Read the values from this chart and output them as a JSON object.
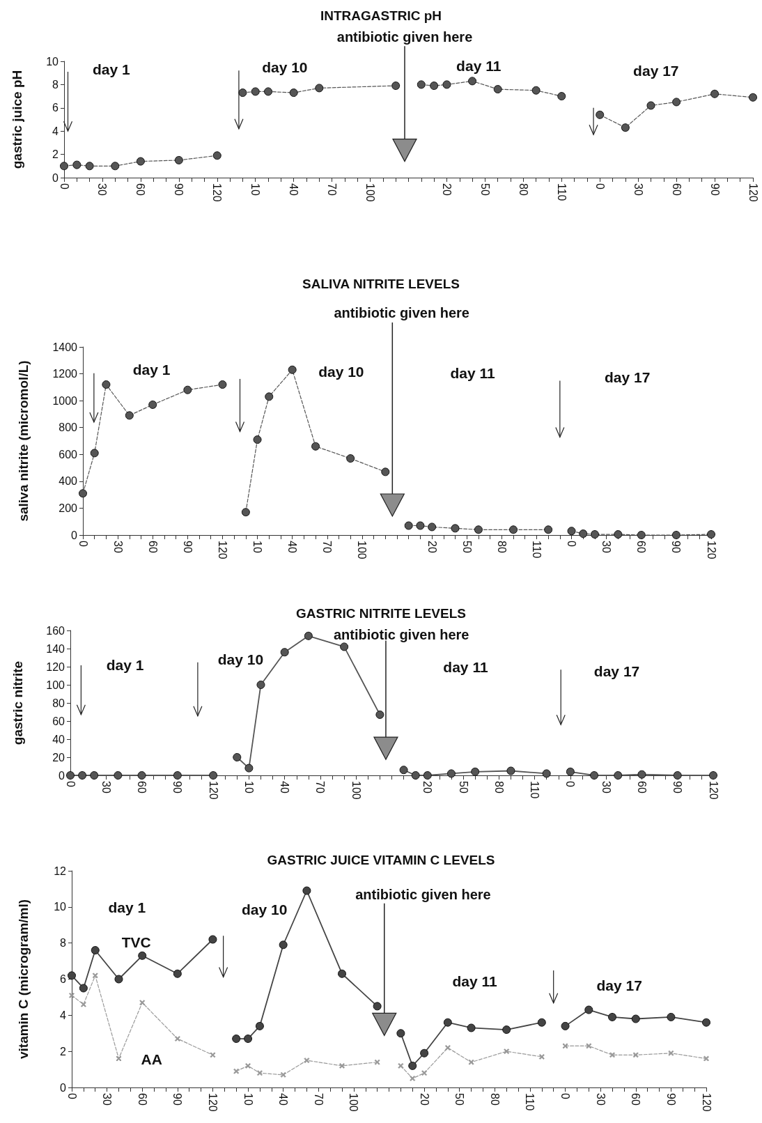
{
  "chart_data": [
    {
      "type": "line",
      "title": "INTRAGASTRIC pH",
      "ylabel": "gastric juice pH",
      "marker": "circle",
      "line_style": "dashed",
      "annotations": [
        "antibiotic given here",
        "day 1",
        "day 10",
        "day 11",
        "day 17"
      ],
      "categories": [
        "0",
        null,
        null,
        "30",
        null,
        null,
        "60",
        null,
        null,
        "90",
        null,
        null,
        "120",
        null,
        null,
        "10",
        null,
        null,
        "40",
        null,
        null,
        "70",
        null,
        null,
        "100",
        null,
        null,
        null,
        null,
        null,
        "20",
        null,
        null,
        "50",
        null,
        null,
        "80",
        null,
        null,
        "110",
        null,
        null,
        "0",
        null,
        null,
        "30",
        null,
        null,
        "60",
        null,
        null,
        "90",
        null,
        null,
        "120"
      ],
      "ylim": [
        0,
        10
      ],
      "yticks": [
        0,
        2,
        4,
        6,
        8,
        10
      ],
      "series": [
        {
          "color": "#555555",
          "values": [
            1.0,
            1.1,
            1.0,
            null,
            1.0,
            null,
            1.4,
            null,
            null,
            1.5,
            null,
            null,
            1.9,
            null,
            null,
            null,
            null,
            null,
            null,
            null,
            null,
            null,
            null,
            null,
            null,
            null,
            null,
            null,
            null,
            null,
            null,
            null,
            null,
            null,
            null,
            null,
            null,
            null,
            null,
            null,
            null,
            null,
            null,
            null,
            null,
            null,
            null,
            null,
            null,
            null,
            null,
            null,
            null,
            null,
            null
          ]
        },
        {
          "color": "#555555",
          "values": [
            null,
            null,
            null,
            null,
            null,
            null,
            null,
            null,
            null,
            null,
            null,
            null,
            null,
            null,
            7.3,
            7.4,
            7.4,
            null,
            7.3,
            null,
            7.7,
            null,
            null,
            null,
            null,
            null,
            7.9,
            null,
            null,
            null,
            null,
            null,
            null,
            null,
            null,
            null,
            null,
            null,
            null,
            null,
            null,
            null,
            null,
            null,
            null,
            null,
            null,
            null,
            null,
            null,
            null,
            null,
            null,
            null,
            null
          ]
        },
        {
          "color": "#555555",
          "values": [
            null,
            null,
            null,
            null,
            null,
            null,
            null,
            null,
            null,
            null,
            null,
            null,
            null,
            null,
            null,
            null,
            null,
            null,
            null,
            null,
            null,
            null,
            null,
            null,
            null,
            null,
            null,
            null,
            8.0,
            7.9,
            8.0,
            null,
            8.3,
            null,
            7.6,
            null,
            null,
            7.5,
            null,
            7.0,
            null,
            null,
            null,
            null,
            null,
            null,
            null,
            null,
            null,
            null,
            null,
            null,
            null,
            null,
            null
          ]
        },
        {
          "color": "#555555",
          "values": [
            null,
            null,
            null,
            null,
            null,
            null,
            null,
            null,
            null,
            null,
            null,
            null,
            null,
            null,
            null,
            null,
            null,
            null,
            null,
            null,
            null,
            null,
            null,
            null,
            null,
            null,
            null,
            null,
            null,
            null,
            null,
            null,
            null,
            null,
            null,
            null,
            null,
            null,
            null,
            null,
            null,
            null,
            5.4,
            null,
            4.3,
            null,
            6.2,
            null,
            6.5,
            null,
            null,
            7.2,
            null,
            null,
            6.9
          ]
        }
      ]
    },
    {
      "type": "line",
      "title": "SALIVA NITRITE LEVELS",
      "ylabel": "saliva nitrite (micromol/L)",
      "marker": "circle",
      "line_style": "dashed",
      "annotations": [
        "antibiotic given here",
        "day 1",
        "day 10",
        "day 11",
        "day 17"
      ],
      "categories": [
        "0",
        null,
        null,
        "30",
        null,
        null,
        "60",
        null,
        null,
        "90",
        null,
        null,
        "120",
        null,
        null,
        "10",
        null,
        null,
        "40",
        null,
        null,
        "70",
        null,
        null,
        "100",
        null,
        null,
        null,
        null,
        null,
        "20",
        null,
        null,
        "50",
        null,
        null,
        "80",
        null,
        null,
        "110",
        null,
        null,
        "0",
        null,
        null,
        "30",
        null,
        null,
        "60",
        null,
        null,
        "90",
        null,
        null,
        "120"
      ],
      "ylim": [
        0,
        1400
      ],
      "yticks": [
        0,
        200,
        400,
        600,
        800,
        1000,
        1200,
        1400
      ],
      "series": [
        {
          "color": "#555555",
          "values": [
            310,
            610,
            1120,
            null,
            890,
            null,
            970,
            null,
            null,
            1080,
            null,
            null,
            1120,
            null,
            null,
            null,
            null,
            null,
            null,
            null,
            null,
            null,
            null,
            null,
            null,
            null,
            null,
            null,
            null,
            null,
            null,
            null,
            null,
            null,
            null,
            null,
            null,
            null,
            null,
            null,
            null,
            null,
            null,
            null,
            null,
            null,
            null,
            null,
            null,
            null,
            null,
            null,
            null,
            null,
            null
          ]
        },
        {
          "color": "#555555",
          "values": [
            null,
            null,
            null,
            null,
            null,
            null,
            null,
            null,
            null,
            null,
            null,
            null,
            null,
            null,
            170,
            710,
            1030,
            null,
            1230,
            null,
            660,
            null,
            null,
            570,
            null,
            null,
            470,
            null,
            null,
            null,
            null,
            null,
            null,
            null,
            null,
            null,
            null,
            null,
            null,
            null,
            null,
            null,
            null,
            null,
            null,
            null,
            null,
            null,
            null,
            null,
            null,
            null,
            null,
            null,
            null
          ]
        },
        {
          "color": "#555555",
          "values": [
            null,
            null,
            null,
            null,
            null,
            null,
            null,
            null,
            null,
            null,
            null,
            null,
            null,
            null,
            null,
            null,
            null,
            null,
            null,
            null,
            null,
            null,
            null,
            null,
            null,
            null,
            null,
            null,
            70,
            70,
            60,
            null,
            50,
            null,
            40,
            null,
            null,
            40,
            null,
            null,
            40,
            null,
            null,
            null,
            null,
            null,
            null,
            null,
            null,
            null,
            null,
            null,
            null,
            null,
            null
          ]
        },
        {
          "color": "#555555",
          "values": [
            null,
            null,
            null,
            null,
            null,
            null,
            null,
            null,
            null,
            null,
            null,
            null,
            null,
            null,
            null,
            null,
            null,
            null,
            null,
            null,
            null,
            null,
            null,
            null,
            null,
            null,
            null,
            null,
            null,
            null,
            null,
            null,
            null,
            null,
            null,
            null,
            null,
            null,
            null,
            null,
            null,
            null,
            30,
            10,
            5,
            null,
            5,
            null,
            0,
            null,
            null,
            0,
            null,
            null,
            5
          ]
        }
      ]
    },
    {
      "type": "line",
      "title": "GASTRIC NITRITE LEVELS",
      "ylabel": "gastric nitrite",
      "marker": "circle",
      "line_style": "solid",
      "annotations": [
        "antibiotic given here",
        "day 1",
        "day 10",
        "day 11",
        "day 17"
      ],
      "categories": [
        "0",
        null,
        null,
        "30",
        null,
        null,
        "60",
        null,
        null,
        "90",
        null,
        null,
        "120",
        null,
        null,
        "10",
        null,
        null,
        "40",
        null,
        null,
        "70",
        null,
        null,
        "100",
        null,
        null,
        null,
        null,
        null,
        "20",
        null,
        null,
        "50",
        null,
        null,
        "80",
        null,
        null,
        "110",
        null,
        null,
        "0",
        null,
        null,
        "30",
        null,
        null,
        "60",
        null,
        null,
        "90",
        null,
        null,
        "120"
      ],
      "ylim": [
        0,
        160
      ],
      "yticks": [
        0,
        20,
        40,
        60,
        80,
        100,
        120,
        140,
        160
      ],
      "series": [
        {
          "color": "#555555",
          "values": [
            0,
            0,
            0,
            null,
            0,
            null,
            0,
            null,
            null,
            0,
            null,
            null,
            0,
            null,
            null,
            null,
            null,
            null,
            null,
            null,
            null,
            null,
            null,
            null,
            null,
            null,
            null,
            null,
            null,
            null,
            null,
            null,
            null,
            null,
            null,
            null,
            null,
            null,
            null,
            null,
            null,
            null,
            null,
            null,
            null,
            null,
            null,
            null,
            null,
            null,
            null,
            null,
            null,
            null,
            null
          ]
        },
        {
          "color": "#555555",
          "values": [
            null,
            null,
            null,
            null,
            null,
            null,
            null,
            null,
            null,
            null,
            null,
            null,
            null,
            null,
            20,
            8,
            100,
            null,
            136,
            null,
            154,
            null,
            null,
            142,
            null,
            null,
            67,
            null,
            null,
            null,
            null,
            null,
            null,
            null,
            null,
            null,
            null,
            null,
            null,
            null,
            null,
            null,
            null,
            null,
            null,
            null,
            null,
            null,
            null,
            null,
            null,
            null,
            null,
            null,
            null
          ]
        },
        {
          "color": "#555555",
          "values": [
            null,
            null,
            null,
            null,
            null,
            null,
            null,
            null,
            null,
            null,
            null,
            null,
            null,
            null,
            null,
            null,
            null,
            null,
            null,
            null,
            null,
            null,
            null,
            null,
            null,
            null,
            null,
            null,
            6,
            0,
            0,
            null,
            2,
            null,
            4,
            null,
            null,
            5,
            null,
            null,
            2,
            null,
            null,
            null,
            null,
            null,
            null,
            null,
            null,
            null,
            null,
            null,
            null,
            null,
            null
          ]
        },
        {
          "color": "#555555",
          "values": [
            null,
            null,
            null,
            null,
            null,
            null,
            null,
            null,
            null,
            null,
            null,
            null,
            null,
            null,
            null,
            null,
            null,
            null,
            null,
            null,
            null,
            null,
            null,
            null,
            null,
            null,
            null,
            null,
            null,
            null,
            null,
            null,
            null,
            null,
            null,
            null,
            null,
            null,
            null,
            null,
            null,
            null,
            4,
            null,
            0,
            null,
            0,
            null,
            1,
            null,
            null,
            0,
            null,
            null,
            0
          ]
        }
      ]
    },
    {
      "type": "line",
      "title": "GASTRIC JUICE VITAMIN C LEVELS",
      "ylabel": "vitamin C (microgram/ml)",
      "marker": "circle",
      "line_style": "solid",
      "annotations": [
        "antibiotic given here",
        "day 1",
        "day 10",
        "day 11",
        "day 17"
      ],
      "categories": [
        "0",
        null,
        null,
        "30",
        null,
        null,
        "60",
        null,
        null,
        "90",
        null,
        null,
        "120",
        null,
        null,
        "10",
        null,
        null,
        "40",
        null,
        null,
        "70",
        null,
        null,
        "100",
        null,
        null,
        null,
        null,
        null,
        "20",
        null,
        null,
        "50",
        null,
        null,
        "80",
        null,
        null,
        "110",
        null,
        null,
        "0",
        null,
        null,
        "30",
        null,
        null,
        "60",
        null,
        null,
        "90",
        null,
        null,
        "120"
      ],
      "ylim": [
        0,
        12
      ],
      "yticks": [
        0,
        2,
        4,
        6,
        8,
        10,
        12
      ],
      "series": [
        {
          "name": "TVC",
          "color": "#444444",
          "values": [
            6.2,
            5.5,
            7.6,
            null,
            6.0,
            null,
            7.3,
            null,
            null,
            6.3,
            null,
            null,
            8.2,
            null,
            null,
            null,
            null,
            null,
            null,
            null,
            null,
            null,
            null,
            null,
            null,
            null,
            null,
            null,
            null,
            null,
            null,
            null,
            null,
            null,
            null,
            null,
            null,
            null,
            null,
            null,
            null,
            null,
            null,
            null,
            null,
            null,
            null,
            null,
            null,
            null,
            null,
            null,
            null,
            null,
            null
          ]
        },
        {
          "color": "#444444",
          "values": [
            null,
            null,
            null,
            null,
            null,
            null,
            null,
            null,
            null,
            null,
            null,
            null,
            null,
            null,
            2.7,
            2.7,
            3.4,
            null,
            7.9,
            null,
            10.9,
            null,
            null,
            6.3,
            null,
            null,
            4.5,
            null,
            null,
            null,
            null,
            null,
            null,
            null,
            null,
            null,
            null,
            null,
            null,
            null,
            null,
            null,
            null,
            null,
            null,
            null,
            null,
            null,
            null,
            null,
            null,
            null,
            null,
            null,
            null
          ]
        },
        {
          "color": "#444444",
          "values": [
            null,
            null,
            null,
            null,
            null,
            null,
            null,
            null,
            null,
            null,
            null,
            null,
            null,
            null,
            null,
            null,
            null,
            null,
            null,
            null,
            null,
            null,
            null,
            null,
            null,
            null,
            null,
            null,
            3.0,
            1.2,
            1.9,
            null,
            3.6,
            null,
            3.3,
            null,
            null,
            3.2,
            null,
            null,
            3.6,
            null,
            null,
            null,
            null,
            null,
            null,
            null,
            null,
            null,
            null,
            null,
            null,
            null,
            null
          ]
        },
        {
          "color": "#444444",
          "values": [
            null,
            null,
            null,
            null,
            null,
            null,
            null,
            null,
            null,
            null,
            null,
            null,
            null,
            null,
            null,
            null,
            null,
            null,
            null,
            null,
            null,
            null,
            null,
            null,
            null,
            null,
            null,
            null,
            null,
            null,
            null,
            null,
            null,
            null,
            null,
            null,
            null,
            null,
            null,
            null,
            null,
            null,
            3.4,
            null,
            4.3,
            null,
            3.9,
            null,
            3.8,
            null,
            null,
            3.9,
            null,
            null,
            3.6
          ]
        },
        {
          "name": "AA",
          "color": "#999999",
          "marker": "cross",
          "line_style": "dashed",
          "values": [
            5.1,
            4.6,
            6.2,
            null,
            1.6,
            null,
            4.7,
            null,
            null,
            2.7,
            null,
            null,
            1.8,
            null,
            null,
            null,
            null,
            null,
            null,
            null,
            null,
            null,
            null,
            null,
            null,
            null,
            null,
            null,
            null,
            null,
            null,
            null,
            null,
            null,
            null,
            null,
            null,
            null,
            null,
            null,
            null,
            null,
            null,
            null,
            null,
            null,
            null,
            null,
            null,
            null,
            null,
            null,
            null,
            null,
            null
          ]
        },
        {
          "color": "#999999",
          "marker": "cross",
          "line_style": "dashed",
          "values": [
            null,
            null,
            null,
            null,
            null,
            null,
            null,
            null,
            null,
            null,
            null,
            null,
            null,
            null,
            0.9,
            1.2,
            0.8,
            null,
            0.7,
            null,
            1.5,
            null,
            null,
            1.2,
            null,
            null,
            1.4,
            null,
            null,
            null,
            null,
            null,
            null,
            null,
            null,
            null,
            null,
            null,
            null,
            null,
            null,
            null,
            null,
            null,
            null,
            null,
            null,
            null,
            null,
            null,
            null,
            null,
            null,
            null,
            null
          ]
        },
        {
          "color": "#999999",
          "marker": "cross",
          "line_style": "dashed",
          "values": [
            null,
            null,
            null,
            null,
            null,
            null,
            null,
            null,
            null,
            null,
            null,
            null,
            null,
            null,
            null,
            null,
            null,
            null,
            null,
            null,
            null,
            null,
            null,
            null,
            null,
            null,
            null,
            null,
            1.2,
            0.5,
            0.8,
            null,
            2.2,
            null,
            1.4,
            null,
            null,
            2.0,
            null,
            null,
            1.7,
            null,
            null,
            null,
            null,
            null,
            null,
            null,
            null,
            null,
            null,
            null,
            null,
            null,
            null
          ]
        },
        {
          "color": "#999999",
          "marker": "cross",
          "line_style": "dashed",
          "values": [
            null,
            null,
            null,
            null,
            null,
            null,
            null,
            null,
            null,
            null,
            null,
            null,
            null,
            null,
            null,
            null,
            null,
            null,
            null,
            null,
            null,
            null,
            null,
            null,
            null,
            null,
            null,
            null,
            null,
            null,
            null,
            null,
            null,
            null,
            null,
            null,
            null,
            null,
            null,
            null,
            null,
            null,
            2.3,
            null,
            2.3,
            null,
            1.8,
            null,
            1.8,
            null,
            null,
            1.9,
            null,
            null,
            1.6
          ]
        }
      ]
    }
  ]
}
